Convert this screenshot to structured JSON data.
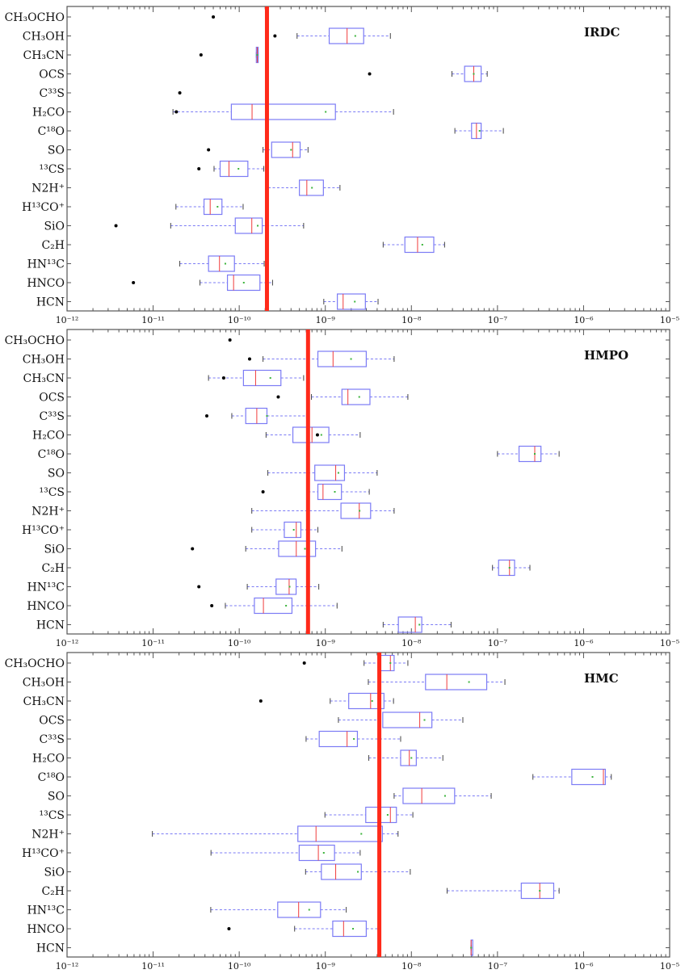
{
  "chart_data": [
    {
      "type": "box",
      "title": "IRDC",
      "xscale": "log",
      "xlim": [
        1e-12,
        1e-05
      ],
      "xticks": [
        "10⁻¹²",
        "10⁻¹¹",
        "10⁻¹⁰",
        "10⁻⁹",
        "10⁻⁸",
        "10⁻⁷",
        "10⁻⁶",
        "10⁻⁵"
      ],
      "reference_line": 2.1e-10,
      "categories": [
        "CH₃OCHO",
        "CH₃OH",
        "CH₃CN",
        "OCS",
        "C³³S",
        "H₂CO",
        "C¹⁸O",
        "SO",
        "¹³CS",
        "N2H⁺",
        "H¹³CO⁺",
        "SiO",
        "C₂H",
        "HN¹³C",
        "HNCO",
        "HCN"
      ],
      "boxes": [
        {
          "whislo": null,
          "q1": null,
          "med": null,
          "mean": null,
          "q3": null,
          "whishi": null,
          "fliers": [
            5e-11
          ]
        },
        {
          "whislo": 4.7e-10,
          "q1": 1.11e-09,
          "med": 1.79e-09,
          "mean": 2.23e-09,
          "q3": 2.79e-09,
          "whishi": 5.7e-09,
          "fliers": [
            2.6e-10
          ]
        },
        {
          "whislo": 1.58e-10,
          "q1": 1.58e-10,
          "med": 1.62e-10,
          "mean": 1.62e-10,
          "q3": 1.66e-10,
          "whishi": 1.66e-10,
          "fliers": [
            3.6e-11
          ]
        },
        {
          "whislo": 2.96e-08,
          "q1": 4.15e-08,
          "med": 5.3e-08,
          "mean": 5.3e-08,
          "q3": 6.46e-08,
          "whishi": 7.6e-08,
          "fliers": [
            3.27e-09
          ]
        },
        {
          "whislo": null,
          "q1": null,
          "med": null,
          "mean": null,
          "q3": null,
          "whishi": null,
          "fliers": [
            2.04e-11
          ]
        },
        {
          "whislo": 1.7e-11,
          "q1": 8.1e-11,
          "med": 1.41e-10,
          "mean": 1.01e-09,
          "q3": 1.31e-09,
          "whishi": 6.2e-09,
          "fliers": [
            1.86e-11
          ]
        },
        {
          "whislo": 3.2e-08,
          "q1": 5e-08,
          "med": 5.7e-08,
          "mean": 6.2e-08,
          "q3": 6.46e-08,
          "whishi": 1.17e-07,
          "fliers": []
        },
        {
          "whislo": 1.89e-10,
          "q1": 2.38e-10,
          "med": 4.17e-10,
          "mean": 4e-10,
          "q3": 5.1e-10,
          "whishi": 6.3e-10,
          "fliers": [
            4.4e-11
          ]
        },
        {
          "whislo": 5.1e-11,
          "q1": 6e-11,
          "med": 7.6e-11,
          "mean": 9.8e-11,
          "q3": 1.26e-10,
          "whishi": 1.93e-10,
          "fliers": [
            3.4e-11
          ]
        },
        {
          "whislo": 2.17e-10,
          "q1": 5e-10,
          "med": 6.1e-10,
          "mean": 7e-10,
          "q3": 9.5e-10,
          "whishi": 1.48e-09,
          "fliers": []
        },
        {
          "whislo": 1.84e-11,
          "q1": 3.9e-11,
          "med": 4.6e-11,
          "mean": 5.6e-11,
          "q3": 6.3e-11,
          "whishi": 1.11e-10,
          "fliers": []
        },
        {
          "whislo": 1.6e-11,
          "q1": 9e-11,
          "med": 1.4e-10,
          "mean": 1.64e-10,
          "q3": 1.85e-10,
          "whishi": 5.6e-10,
          "fliers": [
            3.7e-12
          ]
        },
        {
          "whislo": 4.7e-09,
          "q1": 8.4e-09,
          "med": 1.18e-08,
          "mean": 1.34e-08,
          "q3": 1.82e-08,
          "whishi": 2.43e-08,
          "fliers": []
        },
        {
          "whislo": 2.04e-11,
          "q1": 4.4e-11,
          "med": 5.9e-11,
          "mean": 6.9e-11,
          "q3": 8.8e-11,
          "whishi": 1.95e-10,
          "fliers": []
        },
        {
          "whislo": 3.5e-11,
          "q1": 7.3e-11,
          "med": 8.6e-11,
          "mean": 1.13e-10,
          "q3": 1.74e-10,
          "whishi": 2.44e-10,
          "fliers": [
            5.9e-12
          ]
        },
        {
          "whislo": 9.6e-10,
          "q1": 1.38e-09,
          "med": 1.61e-09,
          "mean": 2.2e-09,
          "q3": 2.92e-09,
          "whishi": 4.1e-09,
          "fliers": []
        }
      ]
    },
    {
      "type": "box",
      "title": "HMPO",
      "xscale": "log",
      "xlim": [
        1e-12,
        1e-05
      ],
      "xticks": [
        "10⁻¹²",
        "10⁻¹¹",
        "10⁻¹⁰",
        "10⁻⁹",
        "10⁻⁸",
        "10⁻⁷",
        "10⁻⁶",
        "10⁻⁵"
      ],
      "reference_line": 6.3e-10,
      "categories": [
        "CH₃OCHO",
        "CH₃OH",
        "CH₃CN",
        "OCS",
        "C³³S",
        "H₂CO",
        "C¹⁸O",
        "SO",
        "¹³CS",
        "N2H⁺",
        "H¹³CO⁺",
        "SiO",
        "C₂H",
        "HN¹³C",
        "HNCO",
        "HCN"
      ],
      "boxes": [
        {
          "whislo": null,
          "q1": null,
          "med": null,
          "mean": null,
          "q3": null,
          "whishi": null,
          "fliers": [
            7.8e-11
          ]
        },
        {
          "whislo": 1.89e-10,
          "q1": 8.2e-10,
          "med": 1.23e-09,
          "mean": 1.99e-09,
          "q3": 2.99e-09,
          "whishi": 6.3e-09,
          "fliers": [
            1.32e-10
          ]
        },
        {
          "whislo": 4.4e-11,
          "q1": 1.12e-10,
          "med": 1.55e-10,
          "mean": 2.3e-10,
          "q3": 3.05e-10,
          "whishi": 5.6e-10,
          "fliers": [
            6.6e-11
          ]
        },
        {
          "whislo": 6.9e-10,
          "q1": 1.56e-09,
          "med": 1.83e-09,
          "mean": 2.48e-09,
          "q3": 3.3e-09,
          "whishi": 9.1e-09,
          "fliers": [
            2.84e-10
          ]
        },
        {
          "whislo": 8.2e-11,
          "q1": 1.19e-10,
          "med": 1.6e-10,
          "mean": 2.1e-10,
          "q3": 2.1e-10,
          "whishi": 6.05e-10,
          "fliers": [
            4.2e-11
          ]
        },
        {
          "whislo": 2.05e-10,
          "q1": 4.2e-10,
          "med": 7e-10,
          "mean": 9e-10,
          "q3": 1.1e-09,
          "whishi": 2.54e-09,
          "fliers": [
            8.1e-10
          ]
        },
        {
          "whislo": 1e-07,
          "q1": 1.78e-07,
          "med": 2.71e-07,
          "mean": 2.71e-07,
          "q3": 3.2e-07,
          "whishi": 5.2e-07,
          "fliers": []
        },
        {
          "whislo": 2.15e-10,
          "q1": 7.55e-10,
          "med": 1.32e-09,
          "mean": 1.42e-09,
          "q3": 1.67e-09,
          "whishi": 4e-09,
          "fliers": []
        },
        {
          "whislo": 6.3e-10,
          "q1": 8.2e-10,
          "med": 9.4e-10,
          "mean": 1.29e-09,
          "q3": 1.54e-09,
          "whishi": 3.24e-09,
          "fliers": [
            1.89e-10
          ]
        },
        {
          "whislo": 1.4e-10,
          "q1": 1.52e-09,
          "med": 2.48e-09,
          "mean": 2.5e-09,
          "q3": 3.36e-09,
          "whishi": 6.3e-09,
          "fliers": []
        },
        {
          "whislo": 1.4e-10,
          "q1": 3.34e-10,
          "med": 4.6e-10,
          "mean": 4.3e-10,
          "q3": 5.2e-10,
          "whishi": 8.2e-10,
          "fliers": []
        },
        {
          "whislo": 1.19e-10,
          "q1": 2.87e-10,
          "med": 4.6e-10,
          "mean": 5.8e-10,
          "q3": 7.7e-10,
          "whishi": 1.56e-09,
          "fliers": [
            2.86e-11
          ]
        },
        {
          "whislo": 8.75e-08,
          "q1": 1.03e-07,
          "med": 1.38e-07,
          "mean": 1.38e-07,
          "q3": 1.58e-07,
          "whishi": 2.38e-07,
          "fliers": []
        },
        {
          "whislo": 1.24e-10,
          "q1": 2.68e-10,
          "med": 3.8e-10,
          "mean": 3.85e-10,
          "q3": 4.58e-10,
          "whishi": 8.4e-10,
          "fliers": [
            3.4e-11
          ]
        },
        {
          "whislo": 6.9e-11,
          "q1": 1.5e-10,
          "med": 1.91e-10,
          "mean": 3.5e-10,
          "q3": 4.1e-10,
          "whishi": 1.37e-09,
          "fliers": [
            4.8e-11
          ]
        },
        {
          "whislo": 4.7e-09,
          "q1": 7.06e-09,
          "med": 1.11e-08,
          "mean": 1.24e-08,
          "q3": 1.32e-08,
          "whishi": 2.89e-08,
          "fliers": []
        }
      ]
    },
    {
      "type": "box",
      "title": "HMC",
      "xscale": "log",
      "xlim": [
        1e-12,
        1e-05
      ],
      "xticks": [
        "10⁻¹²",
        "10⁻¹¹",
        "10⁻¹⁰",
        "10⁻⁹",
        "10⁻⁸",
        "10⁻⁷",
        "10⁻⁶",
        "10⁻⁵"
      ],
      "reference_line": 4.24e-09,
      "categories": [
        "CH₃OCHO",
        "CH₃OH",
        "CH₃CN",
        "OCS",
        "C³³S",
        "H₂CO",
        "C¹⁸O",
        "SO",
        "¹³CS",
        "N2H⁺",
        "H¹³CO⁺",
        "SiO",
        "C₂H",
        "HN¹³C",
        "HNCO",
        "HCN"
      ],
      "boxes": [
        {
          "whislo": 2.82e-09,
          "q1": 4.09e-09,
          "med": 5.7e-09,
          "mean": 5.7e-09,
          "q3": 6.3e-09,
          "whishi": 9.1e-09,
          "fliers": [
            5.7e-10
          ]
        },
        {
          "whislo": 3.16e-09,
          "q1": 1.46e-08,
          "med": 2.58e-08,
          "mean": 4.67e-08,
          "q3": 7.5e-08,
          "whishi": 1.22e-07,
          "fliers": []
        },
        {
          "whislo": 1.14e-09,
          "q1": 1.87e-09,
          "med": 3.36e-09,
          "mean": 3.5e-09,
          "q3": 4.8e-09,
          "whishi": 6.2e-09,
          "fliers": [
            1.78e-10
          ]
        },
        {
          "whislo": 1.42e-09,
          "q1": 4.65e-09,
          "med": 1.25e-08,
          "mean": 1.42e-08,
          "q3": 1.73e-08,
          "whishi": 3.96e-08,
          "fliers": []
        },
        {
          "whislo": 5.98e-10,
          "q1": 8.5e-10,
          "med": 1.79e-09,
          "mean": 2.15e-09,
          "q3": 2.36e-09,
          "whishi": 7.5e-09,
          "fliers": []
        },
        {
          "whislo": 3.2e-09,
          "q1": 7.5e-09,
          "med": 9.46e-09,
          "mean": 1e-08,
          "q3": 1.14e-08,
          "whishi": 2.32e-08,
          "fliers": []
        },
        {
          "whislo": 2.58e-07,
          "q1": 7.3e-07,
          "med": 1.7e-06,
          "mean": 1.27e-06,
          "q3": 1.79e-06,
          "whishi": 2.1e-06,
          "fliers": []
        },
        {
          "whislo": 6.3e-09,
          "q1": 8e-09,
          "med": 1.32e-08,
          "mean": 2.46e-08,
          "q3": 3.18e-08,
          "whishi": 8.45e-08,
          "fliers": []
        },
        {
          "whislo": 9.9e-10,
          "q1": 2.95e-09,
          "med": 5.7e-09,
          "mean": 5.3e-09,
          "q3": 6.7e-09,
          "whishi": 1.04e-08,
          "fliers": []
        },
        {
          "whislo": 9.8e-12,
          "q1": 4.8e-10,
          "med": 7.8e-10,
          "mean": 2.62e-09,
          "q3": 4.6e-09,
          "whishi": 7e-09,
          "fliers": []
        },
        {
          "whislo": 4.7e-11,
          "q1": 4.97e-10,
          "med": 8.3e-10,
          "mean": 9.6e-10,
          "q3": 1.28e-09,
          "whishi": 2.54e-09,
          "fliers": []
        },
        {
          "whislo": 5.9e-10,
          "q1": 9e-10,
          "med": 1.32e-09,
          "mean": 2.39e-09,
          "q3": 2.62e-09,
          "whishi": 9.7e-09,
          "fliers": []
        },
        {
          "whislo": 2.6e-08,
          "q1": 1.89e-07,
          "med": 3.1e-07,
          "mean": 3.1e-07,
          "q3": 4.5e-07,
          "whishi": 5.2e-07,
          "fliers": []
        },
        {
          "whislo": 4.67e-11,
          "q1": 2.8e-10,
          "med": 4.9e-10,
          "mean": 6.5e-10,
          "q3": 8.8e-10,
          "whishi": 1.75e-09,
          "fliers": []
        },
        {
          "whislo": 4.4e-10,
          "q1": 1.22e-09,
          "med": 1.63e-09,
          "mean": 2.1e-09,
          "q3": 2.99e-09,
          "whishi": 4.09e-09,
          "fliers": [
            7.6e-11
          ]
        },
        {
          "whislo": 4.94e-08,
          "q1": 4.94e-08,
          "med": 4.94e-08,
          "mean": 4.94e-08,
          "q3": 4.94e-08,
          "whishi": 4.94e-08,
          "fliers": []
        }
      ]
    }
  ],
  "colors": {
    "box": "#7b7bf5",
    "median": "#f03c3c",
    "mean": "#3cb43c",
    "reference_line": "#ff2a1a",
    "flier": "#000000",
    "axis": "#555555"
  }
}
